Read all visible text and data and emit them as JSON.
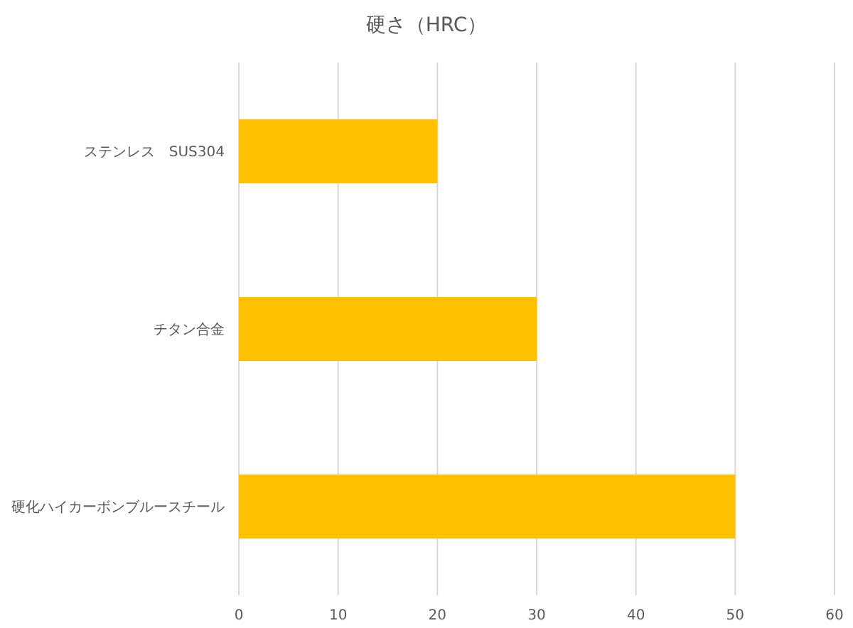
{
  "chart_data": {
    "type": "bar",
    "orientation": "horizontal",
    "title": "硬さ（HRC）",
    "categories": [
      "ステンレス　SUS304",
      "チタン合金",
      "硬化ハイカーボンブルースチール"
    ],
    "values": [
      20,
      30,
      50
    ],
    "color": "#ffc000",
    "xlim": [
      0,
      60
    ],
    "xticks": [
      0,
      10,
      20,
      30,
      40,
      50,
      60
    ],
    "grid": "x"
  }
}
